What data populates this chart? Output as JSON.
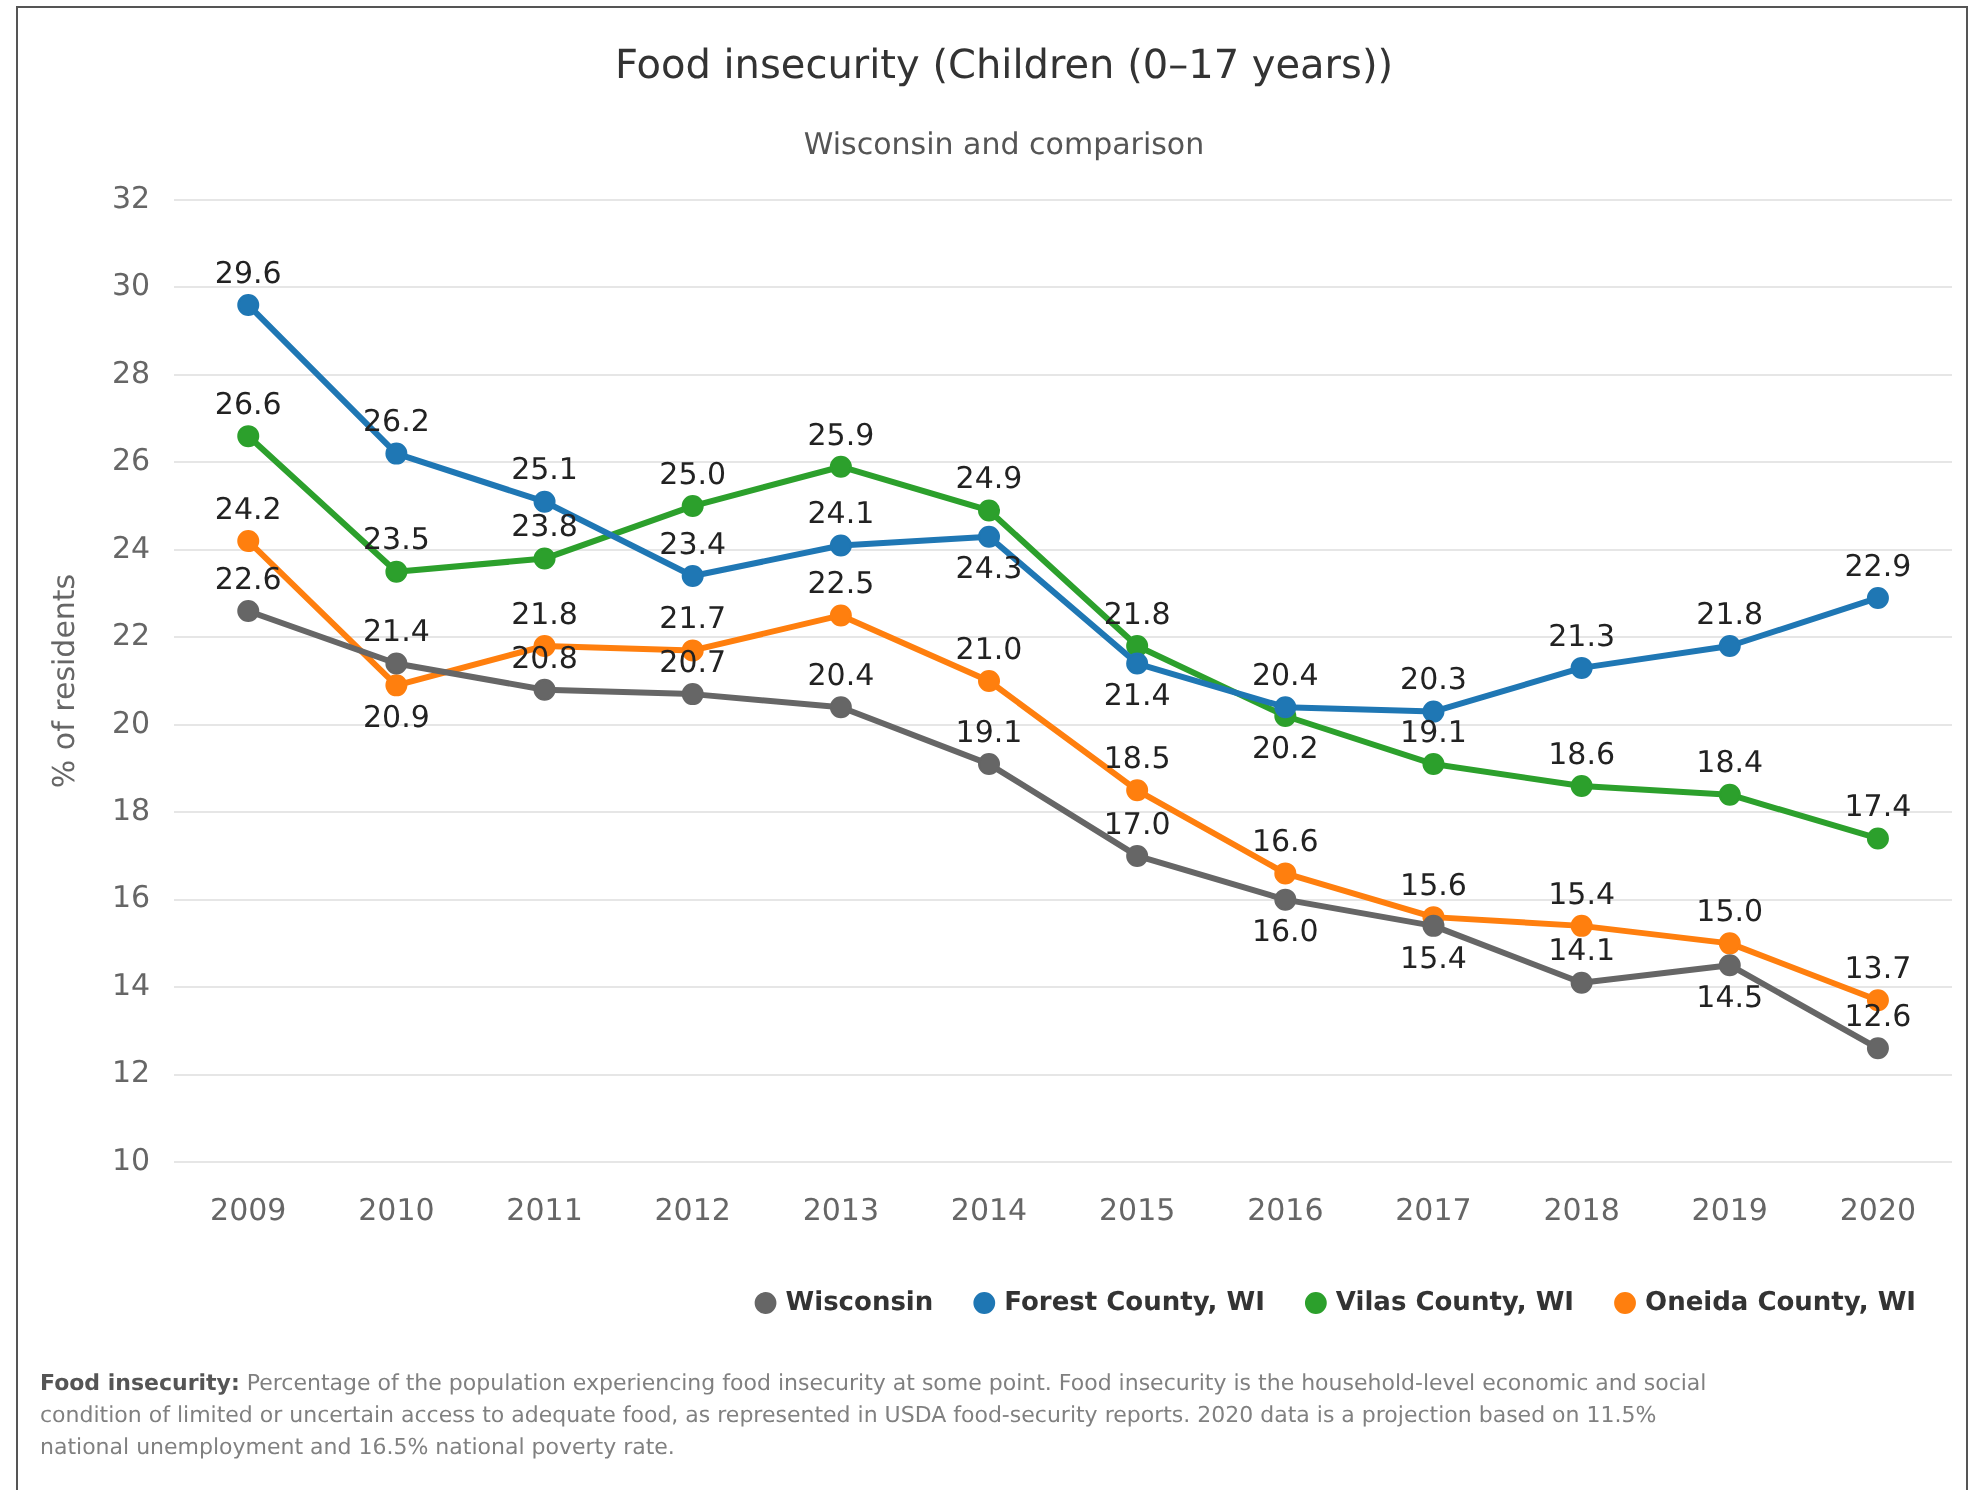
{
  "chart_data": {
    "type": "line",
    "title": "Food insecurity (Children (0–17 years))",
    "subtitle": "Wisconsin and comparison",
    "ylabel": "% of residents",
    "categories": [
      "2009",
      "2010",
      "2011",
      "2012",
      "2013",
      "2014",
      "2015",
      "2016",
      "2017",
      "2018",
      "2019",
      "2020"
    ],
    "series": [
      {
        "name": "Wisconsin",
        "color": "#666666",
        "values": [
          22.6,
          21.4,
          20.8,
          20.7,
          20.4,
          19.1,
          17.0,
          16.0,
          15.4,
          14.1,
          14.5,
          12.6
        ],
        "value_labels": [
          "22.6",
          "21.4",
          "20.8",
          "20.7",
          "20.4",
          "19.1",
          "17.0",
          "16.0",
          "15.4",
          "14.1",
          "14.5",
          "12.6"
        ]
      },
      {
        "name": "Forest County, WI",
        "color": "#1f77b4",
        "values": [
          29.6,
          26.2,
          25.1,
          23.4,
          24.1,
          24.3,
          21.4,
          20.4,
          20.3,
          21.3,
          21.8,
          22.9
        ],
        "value_labels": [
          "29.6",
          "26.2",
          "25.1",
          "23.4",
          "24.1",
          "24.3",
          "21.4",
          "20.4",
          "20.3",
          "21.3",
          "21.8",
          "22.9"
        ]
      },
      {
        "name": "Vilas County, WI",
        "color": "#2ca02c",
        "values": [
          26.6,
          23.5,
          23.8,
          25.0,
          25.9,
          24.9,
          21.8,
          20.2,
          19.1,
          18.6,
          18.4,
          17.4
        ],
        "value_labels": [
          "26.6",
          "23.5",
          "23.8",
          "25.0",
          "25.9",
          "24.9",
          "21.8",
          "20.2",
          "19.1",
          "18.6",
          "18.4",
          "17.4"
        ]
      },
      {
        "name": "Oneida County, WI",
        "color": "#ff7f0e",
        "values": [
          24.2,
          20.9,
          21.8,
          21.7,
          22.5,
          21.0,
          18.5,
          16.6,
          15.6,
          15.4,
          15.0,
          13.7
        ],
        "value_labels": [
          "24.2",
          "20.9",
          "21.8",
          "21.7",
          "22.5",
          "21.0",
          "18.5",
          "16.6",
          "15.6",
          "15.4",
          "15.0",
          "13.7"
        ]
      }
    ],
    "ylim": [
      10,
      32
    ],
    "yticks": [
      10,
      12,
      14,
      16,
      18,
      20,
      22,
      24,
      26,
      28,
      30,
      32
    ],
    "grid": "y",
    "legend": "bottom right",
    "marker": "circle",
    "line_style": "solid",
    "annotations": [
      "Food insecurity: Percentage of the population experiencing food insecurity at some point. Food insecurity is the household-level economic and social condition of limited or uncertain access to adequate food, as represented in USDA food-security reports. 2020 data is a projection based on 11.5% national unemployment and 16.5% national poverty rate."
    ]
  }
}
